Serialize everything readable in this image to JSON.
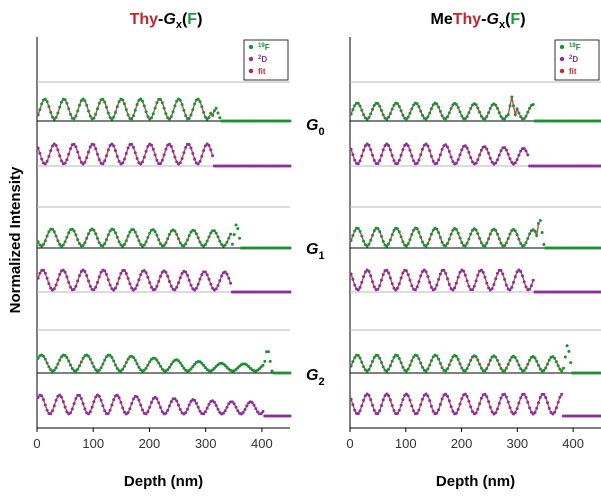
{
  "chart_data": [
    {
      "type": "line",
      "title_parts": [
        {
          "text": "Thy",
          "color": "#c0272d"
        },
        {
          "text": "-",
          "color": "#000000"
        },
        {
          "text": "G",
          "color": "#000000",
          "italic": true
        },
        {
          "text": "x",
          "color": "#000000",
          "sub": true
        },
        {
          "text": "(",
          "color": "#000000"
        },
        {
          "text": "F",
          "color": "#1f9a3a"
        },
        {
          "text": ")",
          "color": "#000000"
        }
      ],
      "xlabel": "Depth (nm)",
      "ylabel": "Normalized Intensity",
      "xlim": [
        0,
        450
      ],
      "xticks": [
        0,
        100,
        200,
        300,
        400
      ],
      "legend": [
        "19F",
        "2D",
        "fit"
      ],
      "legend_position": "top-right",
      "groups": [
        {
          "label": "G0",
          "series": [
            {
              "name": "19F",
              "period": 34,
              "phase": 48,
              "amp": 1.0,
              "decay": 0.0,
              "end": 318,
              "peak_x": 318,
              "peak_amp": 0.6
            },
            {
              "name": "2D",
              "period": 34,
              "phase": 31,
              "amp": 1.0,
              "decay": 0.0,
              "end": 315
            }
          ]
        },
        {
          "label": "G1",
          "series": [
            {
              "name": "19F",
              "period": 36,
              "phase": 62,
              "amp": 0.85,
              "decay": 0.1,
              "end": 345,
              "peak_x": 355,
              "peak_amp": 1.2
            },
            {
              "name": "2D",
              "period": 36,
              "phase": 46,
              "amp": 1.0,
              "decay": 0.1,
              "end": 345
            }
          ]
        },
        {
          "label": "G2",
          "series": [
            {
              "name": "19F",
              "period": 40,
              "phase": 48,
              "amp": 0.8,
              "decay": 0.55,
              "end": 405,
              "peak_x": 410,
              "peak_amp": 1.2
            },
            {
              "name": "2D",
              "period": 34,
              "phase": 40,
              "amp": 0.95,
              "decay": 0.35,
              "end": 405
            }
          ]
        }
      ]
    },
    {
      "type": "line",
      "title_parts": [
        {
          "text": "Me",
          "color": "#000000"
        },
        {
          "text": "Thy",
          "color": "#c0272d"
        },
        {
          "text": "-",
          "color": "#000000"
        },
        {
          "text": "G",
          "color": "#000000",
          "italic": true
        },
        {
          "text": "x",
          "color": "#000000",
          "sub": true
        },
        {
          "text": "(",
          "color": "#000000"
        },
        {
          "text": "F",
          "color": "#1f9a3a"
        },
        {
          "text": ")",
          "color": "#000000"
        }
      ],
      "xlabel": "Depth (nm)",
      "xlim": [
        0,
        450
      ],
      "xticks": [
        0,
        100,
        200,
        300,
        400
      ],
      "legend": [
        "19F",
        "2D",
        "fit"
      ],
      "legend_position": "top-right",
      "groups": [
        {
          "label": "G0",
          "series": [
            {
              "name": "19F",
              "period": 35,
              "phase": 48,
              "amp": 0.8,
              "decay": 0.1,
              "end": 330,
              "peak_x": 290,
              "peak_amp": 1.1
            },
            {
              "name": "2D",
              "period": 35,
              "phase": 31,
              "amp": 1.0,
              "decay": 0.25,
              "end": 320
            }
          ]
        },
        {
          "label": "G1",
          "series": [
            {
              "name": "19F",
              "period": 35,
              "phase": 48,
              "amp": 0.9,
              "decay": 0.1,
              "end": 340,
              "peak_x": 340,
              "peak_amp": 1.5
            },
            {
              "name": "2D",
              "period": 34,
              "phase": 31,
              "amp": 1.0,
              "decay": 0.0,
              "end": 330
            }
          ]
        },
        {
          "label": "G2",
          "series": [
            {
              "name": "19F",
              "period": 35,
              "phase": 48,
              "amp": 0.8,
              "decay": 0.1,
              "end": 380,
              "peak_x": 390,
              "peak_amp": 1.4
            },
            {
              "name": "2D",
              "period": 35,
              "phase": 31,
              "amp": 1.0,
              "decay": 0.0,
              "end": 380
            }
          ]
        }
      ]
    }
  ],
  "colors": {
    "f19": "#1f8f35",
    "d2": "#8b2f9b",
    "fit": "#c0272d",
    "title_red": "#c0272d",
    "title_green": "#1f9a3a"
  }
}
